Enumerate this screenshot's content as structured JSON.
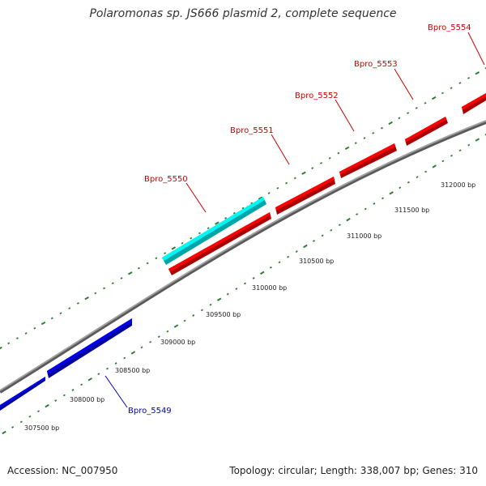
{
  "title": "Polaromonas sp. JS666 plasmid 2, complete sequence",
  "footer": {
    "accession": "Accession: NC_007950",
    "info": "Topology: circular; Length: 338,007 bp; Genes: 310"
  },
  "colors": {
    "background": "#ffffff",
    "backbone": "#808080",
    "tick": "#2e7d32",
    "forward_gene": "#ee0000",
    "reverse_gene": "#0000dd",
    "highlight_gene": "#00e5e5",
    "forward_label": "#cc0000",
    "reverse_label": "#0000cc",
    "scale_label": "#222222"
  },
  "scale_labels": [
    "307500 bp",
    "308000 bp",
    "308500 bp",
    "309000 bp",
    "309500 bp",
    "310000 bp",
    "310500 bp",
    "311000 bp",
    "311500 bp",
    "312000 bp"
  ],
  "genes": [
    {
      "name": "Bpro_5549",
      "strand": "reverse",
      "highlight": false
    },
    {
      "name": "Bpro_5550",
      "strand": "forward",
      "highlight": true
    },
    {
      "name": "Bpro_5551",
      "strand": "forward",
      "highlight": false
    },
    {
      "name": "Bpro_5552",
      "strand": "forward",
      "highlight": false
    },
    {
      "name": "Bpro_5553",
      "strand": "forward",
      "highlight": false
    },
    {
      "name": "Bpro_5554",
      "strand": "forward",
      "highlight": false
    }
  ]
}
